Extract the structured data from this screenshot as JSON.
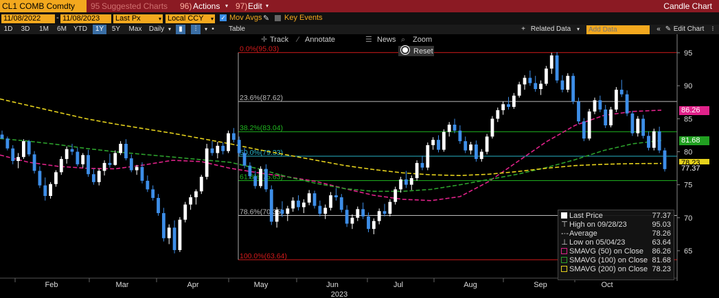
{
  "title_bar": {
    "ticker": "CL1 COMB Comdty",
    "suggested_num": "95",
    "suggested": "Suggested Charts",
    "actions_num": "96)",
    "actions": "Actions",
    "edit_num": "97)",
    "edit": "Edit",
    "chart_name": "Candle Chart"
  },
  "params": {
    "start_date": "11/08/2022",
    "sep": "-",
    "end_date": "11/08/2023",
    "price_field": "Last Px",
    "currency": "Local CCY",
    "mov_avgs": "Mov Avgs",
    "key_events": "Key Events"
  },
  "periods": [
    "1D",
    "3D",
    "1M",
    "6M",
    "YTD",
    "1Y",
    "5Y",
    "Max"
  ],
  "period_selected": "1Y",
  "frequency": "Daily",
  "table_label": "Table",
  "related_data": "Related Data",
  "add_data_placeholder": "Add Data",
  "edit_chart": "Edit Chart",
  "toolbar": {
    "track": "Track",
    "annotate": "Annotate",
    "news": "News",
    "zoom": "Zoom",
    "reset": "Reset"
  },
  "colors": {
    "accent": "#f3a81e",
    "title_bar": "#8b1a23",
    "candle_up": "#ffffff",
    "candle_down": "#3d8ee8",
    "sma50": "#e0228a",
    "sma100": "#2ca02c",
    "sma200": "#e6d21c",
    "fib_extreme": "#d41b1b",
    "fib_236": "#bbbbbb",
    "fib_382": "#21b821",
    "fib_500": "#29b5c8",
    "fib_618": "#21b821",
    "fib_786": "#bbbbbb"
  },
  "chart_data": {
    "type": "candlestick",
    "x_year_label": "2023",
    "x_tick_labels": [
      "Feb",
      "Mar",
      "Apr",
      "May",
      "Jun",
      "Jul",
      "Aug",
      "Sep",
      "Oct"
    ],
    "y_tick_labels": [
      "65",
      "70",
      "75",
      "80",
      "85",
      "90",
      "95"
    ],
    "ylim": [
      61.5,
      97.5
    ],
    "fibonacci": [
      {
        "label": "0.0%(95.03)",
        "value": 95.03
      },
      {
        "label": "23.6%(87.62)",
        "value": 87.62
      },
      {
        "label": "38.2%(83.04)",
        "value": 83.04
      },
      {
        "label": "50.0%(79.33)",
        "value": 79.33
      },
      {
        "label": "61.8%(75.63)",
        "value": 75.63
      },
      {
        "label": "78.6%(70.35)",
        "value": 70.35
      },
      {
        "label": "100.0%(63.64)",
        "value": 63.64
      }
    ],
    "price_tags": [
      {
        "text": "86.26",
        "value": 86.26,
        "color": "#e0228a",
        "text_color": "#ffffff"
      },
      {
        "text": "81.68",
        "value": 81.68,
        "color": "#21a021",
        "text_color": "#ffffff"
      },
      {
        "text": "78.23",
        "value": 78.23,
        "color": "#e6d21c",
        "text_color": "#000000"
      },
      {
        "text": "77.37",
        "value": 77.37,
        "color": "#000000",
        "text_color": "#ffffff"
      }
    ],
    "series": [
      {
        "name": "SMAVG (50) on Close",
        "values": [
          79.5,
          78.4,
          77.8,
          77.5,
          77.4,
          78.0,
          78.7,
          78.5,
          77.5,
          76.8,
          76.2,
          75.5,
          74.4,
          73.4,
          72.8,
          72.6,
          73.2,
          75.5,
          78.5,
          81.5,
          84.0,
          85.5,
          86.1,
          86.3
        ]
      },
      {
        "name": "SMAVG (100) on Close",
        "values": [
          82.0,
          81.6,
          81.1,
          80.5,
          80.0,
          79.6,
          79.2,
          78.8,
          78.4,
          77.4,
          76.2,
          75.2,
          74.4,
          74.0,
          74.0,
          74.3,
          75.0,
          75.8,
          76.6,
          77.6,
          78.8,
          80.2,
          81.2,
          81.7
        ]
      },
      {
        "name": "SMAVG (200) on Close",
        "values": [
          88.0,
          87.0,
          86.0,
          85.0,
          84.2,
          83.5,
          82.8,
          82.0,
          81.2,
          80.3,
          79.5,
          78.7,
          77.9,
          77.3,
          76.8,
          76.5,
          76.4,
          76.6,
          77.0,
          77.5,
          77.9,
          78.1,
          78.2,
          78.23
        ]
      }
    ],
    "ohlc": [
      [
        82.6,
        83.2,
        81.9,
        82.0
      ],
      [
        82.0,
        82.3,
        80.2,
        80.5
      ],
      [
        80.5,
        81.0,
        78.1,
        78.6
      ],
      [
        78.6,
        79.8,
        77.5,
        79.2
      ],
      [
        79.2,
        81.9,
        78.9,
        81.6
      ],
      [
        81.6,
        81.8,
        79.3,
        79.6
      ],
      [
        79.6,
        80.1,
        76.7,
        77.1
      ],
      [
        77.1,
        77.8,
        74.5,
        74.9
      ],
      [
        74.9,
        76.1,
        72.6,
        73.3
      ],
      [
        73.3,
        75.4,
        72.9,
        75.1
      ],
      [
        75.1,
        77.2,
        74.7,
        76.9
      ],
      [
        76.9,
        79.3,
        76.5,
        78.9
      ],
      [
        78.9,
        80.8,
        78.2,
        80.4
      ],
      [
        80.4,
        81.2,
        79.5,
        80.0
      ],
      [
        80.0,
        80.6,
        77.8,
        78.1
      ],
      [
        78.1,
        79.8,
        77.6,
        79.5
      ],
      [
        79.5,
        80.3,
        76.2,
        76.6
      ],
      [
        76.6,
        77.4,
        75.0,
        75.4
      ],
      [
        75.4,
        77.4,
        74.9,
        77.1
      ],
      [
        77.1,
        78.7,
        76.4,
        78.3
      ],
      [
        78.3,
        79.7,
        77.6,
        78.0
      ],
      [
        78.0,
        80.2,
        77.9,
        79.8
      ],
      [
        79.8,
        81.6,
        79.5,
        81.2
      ],
      [
        81.2,
        81.9,
        78.7,
        79.0
      ],
      [
        79.0,
        79.6,
        76.9,
        77.2
      ],
      [
        77.2,
        78.0,
        76.5,
        77.7
      ],
      [
        77.7,
        78.4,
        75.2,
        75.6
      ],
      [
        75.6,
        76.4,
        73.9,
        74.3
      ],
      [
        74.3,
        74.9,
        72.6,
        73.0
      ],
      [
        73.0,
        73.6,
        70.3,
        70.7
      ],
      [
        70.7,
        71.5,
        66.4,
        66.9
      ],
      [
        66.9,
        69.0,
        66.0,
        68.5
      ],
      [
        68.5,
        69.6,
        64.6,
        65.1
      ],
      [
        65.1,
        70.1,
        64.8,
        69.7
      ],
      [
        69.7,
        72.4,
        69.3,
        72.0
      ],
      [
        72.0,
        73.5,
        71.2,
        73.1
      ],
      [
        73.1,
        74.3,
        72.0,
        74.0
      ],
      [
        74.0,
        76.5,
        73.6,
        76.2
      ],
      [
        76.2,
        81.2,
        75.8,
        80.5
      ],
      [
        80.5,
        81.6,
        79.4,
        79.8
      ],
      [
        79.8,
        81.5,
        79.0,
        80.9
      ],
      [
        80.9,
        81.4,
        79.6,
        80.1
      ],
      [
        80.1,
        83.2,
        79.8,
        82.8
      ],
      [
        82.8,
        83.6,
        81.4,
        81.8
      ],
      [
        81.8,
        82.3,
        79.4,
        79.8
      ],
      [
        79.8,
        80.6,
        77.5,
        77.9
      ],
      [
        77.9,
        78.4,
        75.9,
        76.3
      ],
      [
        76.3,
        77.1,
        74.4,
        74.8
      ],
      [
        74.8,
        77.8,
        74.5,
        77.4
      ],
      [
        77.4,
        78.1,
        73.9,
        74.3
      ],
      [
        74.3,
        74.9,
        68.9,
        69.4
      ],
      [
        69.4,
        71.6,
        68.5,
        71.2
      ],
      [
        71.2,
        72.5,
        70.1,
        70.6
      ],
      [
        70.6,
        71.8,
        69.5,
        71.4
      ],
      [
        71.4,
        73.1,
        70.9,
        72.6
      ],
      [
        72.6,
        73.4,
        71.1,
        71.6
      ],
      [
        71.6,
        72.8,
        70.7,
        72.3
      ],
      [
        72.3,
        74.2,
        71.9,
        73.7
      ],
      [
        73.7,
        74.1,
        71.4,
        71.8
      ],
      [
        71.8,
        72.6,
        70.2,
        70.6
      ],
      [
        70.6,
        72.0,
        69.8,
        71.5
      ],
      [
        71.5,
        73.9,
        71.1,
        73.4
      ],
      [
        73.4,
        74.5,
        72.6,
        73.1
      ],
      [
        73.1,
        73.6,
        70.8,
        71.2
      ],
      [
        71.2,
        71.9,
        68.6,
        69.1
      ],
      [
        69.1,
        70.5,
        68.3,
        70.0
      ],
      [
        70.0,
        71.7,
        69.5,
        71.3
      ],
      [
        71.3,
        72.3,
        69.8,
        70.2
      ],
      [
        70.2,
        70.8,
        67.8,
        68.3
      ],
      [
        68.3,
        69.9,
        67.5,
        69.5
      ],
      [
        69.5,
        71.4,
        69.0,
        71.0
      ],
      [
        71.0,
        72.1,
        70.2,
        70.6
      ],
      [
        70.6,
        72.8,
        70.2,
        72.4
      ],
      [
        72.4,
        74.7,
        72.0,
        74.3
      ],
      [
        74.3,
        76.2,
        73.8,
        75.8
      ],
      [
        75.8,
        77.1,
        74.5,
        75.0
      ],
      [
        75.0,
        76.4,
        74.2,
        76.0
      ],
      [
        76.0,
        78.7,
        75.6,
        78.3
      ],
      [
        78.3,
        79.4,
        77.2,
        77.6
      ],
      [
        77.6,
        81.4,
        77.2,
        81.0
      ],
      [
        81.0,
        82.2,
        80.3,
        81.8
      ],
      [
        81.8,
        82.5,
        79.9,
        80.3
      ],
      [
        80.3,
        83.4,
        80.0,
        83.0
      ],
      [
        83.0,
        84.5,
        82.3,
        84.1
      ],
      [
        84.1,
        85.0,
        82.8,
        83.2
      ],
      [
        83.2,
        84.0,
        81.2,
        81.6
      ],
      [
        81.6,
        82.3,
        79.8,
        80.2
      ],
      [
        80.2,
        81.5,
        79.6,
        81.1
      ],
      [
        81.1,
        81.7,
        78.5,
        78.9
      ],
      [
        78.9,
        80.4,
        78.5,
        80.0
      ],
      [
        80.0,
        82.7,
        79.6,
        82.3
      ],
      [
        82.3,
        85.4,
        82.0,
        85.0
      ],
      [
        85.0,
        86.7,
        84.5,
        86.3
      ],
      [
        86.3,
        87.6,
        85.6,
        87.2
      ],
      [
        87.2,
        88.3,
        86.4,
        86.8
      ],
      [
        86.8,
        88.9,
        86.5,
        88.5
      ],
      [
        88.5,
        90.6,
        88.2,
        90.2
      ],
      [
        90.2,
        91.6,
        89.4,
        91.2
      ],
      [
        91.2,
        92.3,
        90.0,
        90.4
      ],
      [
        90.4,
        91.5,
        89.1,
        89.5
      ],
      [
        89.5,
        90.8,
        88.6,
        90.3
      ],
      [
        90.3,
        93.0,
        90.0,
        92.6
      ],
      [
        92.6,
        95.0,
        91.8,
        94.6
      ],
      [
        94.6,
        95.1,
        90.4,
        90.8
      ],
      [
        90.8,
        91.6,
        89.0,
        89.4
      ],
      [
        89.4,
        91.9,
        89.0,
        91.5
      ],
      [
        91.5,
        91.9,
        87.2,
        87.6
      ],
      [
        87.6,
        88.2,
        84.2,
        84.6
      ],
      [
        84.6,
        85.1,
        81.6,
        82.0
      ],
      [
        82.0,
        86.5,
        81.7,
        86.1
      ],
      [
        86.1,
        88.2,
        85.7,
        87.8
      ],
      [
        87.8,
        88.5,
        86.0,
        86.4
      ],
      [
        86.4,
        87.1,
        83.6,
        84.0
      ],
      [
        84.0,
        86.8,
        83.7,
        86.4
      ],
      [
        86.4,
        89.8,
        86.0,
        89.4
      ],
      [
        89.4,
        90.9,
        88.3,
        88.7
      ],
      [
        88.7,
        89.3,
        85.4,
        85.8
      ],
      [
        85.8,
        86.2,
        82.4,
        82.8
      ],
      [
        82.8,
        85.4,
        82.3,
        85.0
      ],
      [
        85.0,
        85.6,
        82.0,
        82.4
      ],
      [
        82.4,
        83.1,
        80.2,
        80.6
      ],
      [
        80.6,
        83.5,
        80.2,
        83.1
      ],
      [
        83.1,
        83.8,
        79.8,
        80.2
      ],
      [
        80.2,
        80.6,
        77.0,
        77.37
      ]
    ]
  },
  "legend": [
    {
      "icon": "square",
      "label": "Last Price",
      "value": "77.37",
      "color": "#ffffff"
    },
    {
      "icon": "high",
      "label": "High on 09/28/23",
      "value": "95.03",
      "color": "#cccccc"
    },
    {
      "icon": "average",
      "label": "Average",
      "value": "78.26",
      "color": "#cccccc"
    },
    {
      "icon": "low",
      "label": "Low on 05/04/23",
      "value": "63.64",
      "color": "#cccccc"
    },
    {
      "icon": "square",
      "label": "SMAVG (50)  on Close",
      "value": "86.26",
      "color": "#e0228a"
    },
    {
      "icon": "square",
      "label": "SMAVG (100)  on Close",
      "value": "81.68",
      "color": "#2ca02c"
    },
    {
      "icon": "square",
      "label": "SMAVG (200)  on Close",
      "value": "78.23",
      "color": "#e6d21c"
    }
  ]
}
